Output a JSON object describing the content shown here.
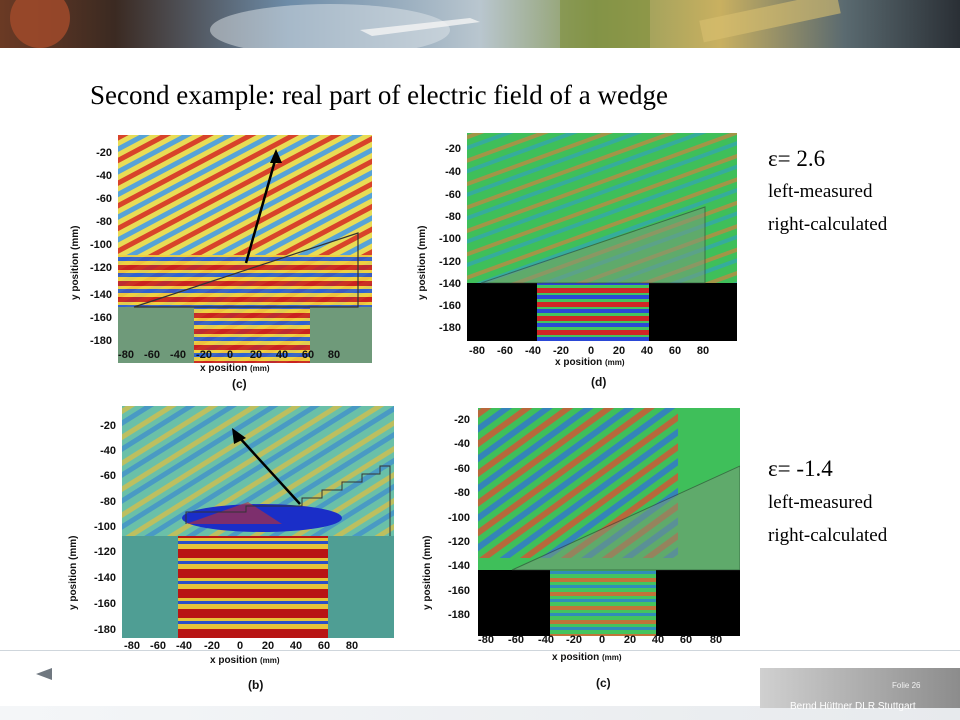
{
  "title": "Second example: real part of electric field of a wedge",
  "annotations": [
    {
      "epsilon": "ε= 2.6",
      "line1": "left-measured",
      "line2": "right-calculated"
    },
    {
      "epsilon": "ε= -1.4",
      "line1": "left-measured",
      "line2": "right-calculated"
    }
  ],
  "plots": [
    {
      "caption": "(c)",
      "ylabel": "y position (mm)",
      "xlabel": "x position",
      "xunit": "(mm)",
      "yticks": [
        "-20",
        "-40",
        "-60",
        "-80",
        "-100",
        "-120",
        "-140",
        "-160",
        "-180"
      ],
      "xticks": [
        "-80",
        "-60",
        "-40",
        "-20",
        "0",
        "20",
        "40",
        "60",
        "80"
      ]
    },
    {
      "caption": "(d)",
      "ylabel": "y position (mm)",
      "xlabel": "x position",
      "xunit": "(mm)",
      "yticks": [
        "-20",
        "-40",
        "-60",
        "-80",
        "-100",
        "-120",
        "-140",
        "-160",
        "-180"
      ],
      "xticks": [
        "-80",
        "-60",
        "-40",
        "-20",
        "0",
        "20",
        "40",
        "60",
        "80"
      ]
    },
    {
      "caption": "(b)",
      "ylabel": "y position (mm)",
      "xlabel": "x position",
      "xunit": "(mm)",
      "yticks": [
        "-20",
        "-40",
        "-60",
        "-80",
        "-100",
        "-120",
        "-140",
        "-160",
        "-180"
      ],
      "xticks": [
        "-80",
        "-60",
        "-40",
        "-20",
        "0",
        "20",
        "40",
        "60",
        "80"
      ]
    },
    {
      "caption": "(c)",
      "ylabel": "y position (mm)",
      "xlabel": "x position",
      "xunit": "(mm)",
      "yticks": [
        "-20",
        "-40",
        "-60",
        "-80",
        "-100",
        "-120",
        "-140",
        "-160",
        "-180"
      ],
      "xticks": [
        "-80",
        "-60",
        "-40",
        "-20",
        "0",
        "20",
        "40",
        "60",
        "80"
      ]
    }
  ],
  "footer": {
    "folio": "Folie 26",
    "author": "Bernd Hüttner DLR Stuttgart"
  }
}
